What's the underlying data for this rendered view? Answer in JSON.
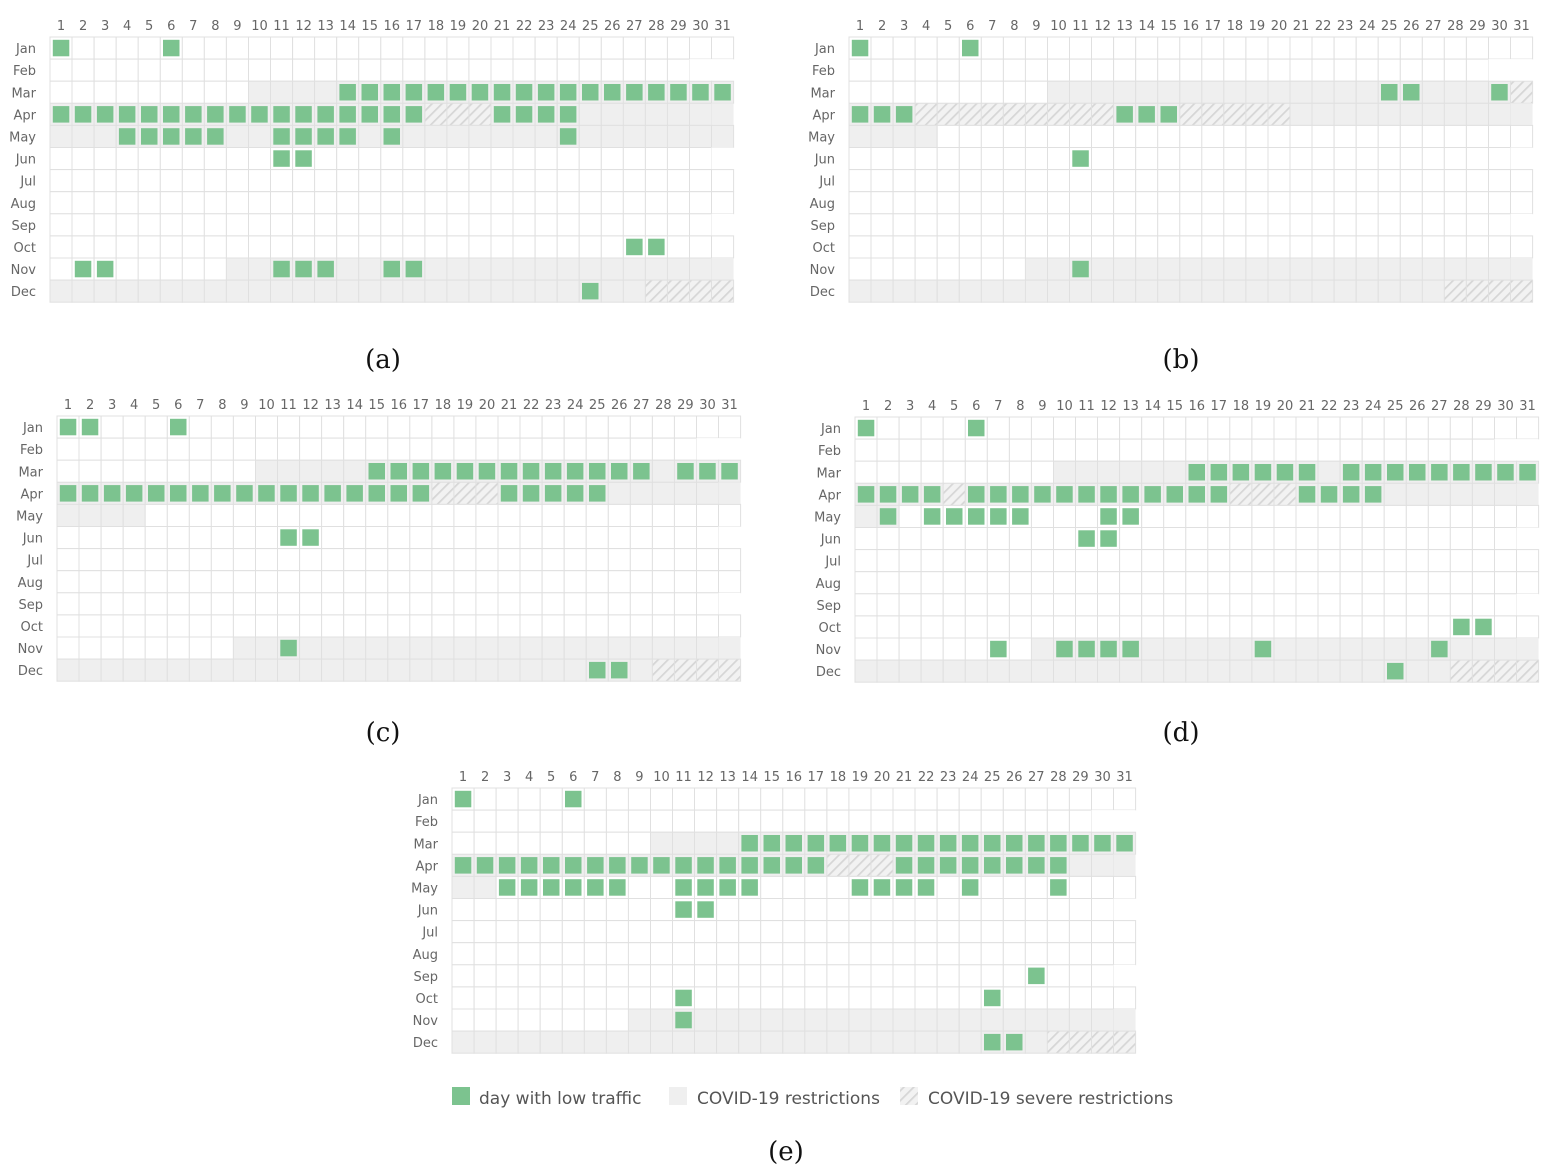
{
  "colors": {
    "low_traffic": "#7cc38f",
    "restriction": "#efefef",
    "severe_bg": "#f2f2f2",
    "severe_stripe": "#d6d6d6",
    "grid_line": "#e0e0e0",
    "cell_fill": "#ffffff"
  },
  "legend": {
    "low_traffic_label": "day with low traffic",
    "restrictions_label": "COVID-19 restrictions",
    "severe_label": "COVID-19 severe restrictions"
  },
  "chart_data": [
    {
      "type": "heatmap",
      "caption": "(a)",
      "days": [
        1,
        2,
        3,
        4,
        5,
        6,
        7,
        8,
        9,
        10,
        11,
        12,
        13,
        14,
        15,
        16,
        17,
        18,
        19,
        20,
        21,
        22,
        23,
        24,
        25,
        26,
        27,
        28,
        29,
        30,
        31
      ],
      "months": [
        "Jan",
        "Feb",
        "Mar",
        "Apr",
        "May",
        "Jun",
        "Jul",
        "Aug",
        "Sep",
        "Oct",
        "Nov",
        "Dec"
      ],
      "restriction_ranges": [
        {
          "month": "Mar",
          "from": 10,
          "to": 31
        },
        {
          "month": "Apr",
          "from": 1,
          "to": 30
        },
        {
          "month": "May",
          "from": 1,
          "to": 31
        },
        {
          "month": "Nov",
          "from": 9,
          "to": 30
        },
        {
          "month": "Dec",
          "from": 1,
          "to": 31
        }
      ],
      "severe_ranges": [
        {
          "month": "Apr",
          "from": 18,
          "to": 20
        },
        {
          "month": "Dec",
          "from": 28,
          "to": 31
        }
      ],
      "low_traffic_days": {
        "Jan": [
          1,
          6
        ],
        "Mar": [
          14,
          15,
          16,
          17,
          18,
          19,
          20,
          21,
          22,
          23,
          24,
          25,
          26,
          27,
          28,
          29,
          30,
          31
        ],
        "Apr": [
          1,
          2,
          3,
          4,
          5,
          6,
          7,
          8,
          9,
          10,
          11,
          12,
          13,
          14,
          15,
          16,
          17,
          21,
          22,
          23,
          24
        ],
        "May": [
          4,
          5,
          6,
          7,
          8,
          11,
          12,
          13,
          14,
          16,
          24
        ],
        "Jun": [
          11,
          12
        ],
        "Oct": [
          27,
          28
        ],
        "Nov": [
          2,
          3,
          11,
          12,
          13,
          16,
          17
        ],
        "Dec": [
          25
        ]
      }
    },
    {
      "type": "heatmap",
      "caption": "(b)",
      "days": [
        1,
        2,
        3,
        4,
        5,
        6,
        7,
        8,
        9,
        10,
        11,
        12,
        13,
        14,
        15,
        16,
        17,
        18,
        19,
        20,
        21,
        22,
        23,
        24,
        25,
        26,
        27,
        28,
        29,
        30,
        31
      ],
      "months": [
        "Jan",
        "Feb",
        "Mar",
        "Apr",
        "May",
        "Jun",
        "Jul",
        "Aug",
        "Sep",
        "Oct",
        "Nov",
        "Dec"
      ],
      "restriction_ranges": [
        {
          "month": "Mar",
          "from": 10,
          "to": 31
        },
        {
          "month": "Apr",
          "from": 1,
          "to": 30
        },
        {
          "month": "May",
          "from": 1,
          "to": 4
        },
        {
          "month": "Nov",
          "from": 9,
          "to": 30
        },
        {
          "month": "Dec",
          "from": 1,
          "to": 31
        }
      ],
      "severe_ranges": [
        {
          "month": "Mar",
          "from": 31,
          "to": 31
        },
        {
          "month": "Apr",
          "from": 4,
          "to": 12
        },
        {
          "month": "Apr",
          "from": 16,
          "to": 20
        },
        {
          "month": "Dec",
          "from": 28,
          "to": 31
        }
      ],
      "low_traffic_days": {
        "Jan": [
          1,
          6
        ],
        "Mar": [
          25,
          26,
          30
        ],
        "Apr": [
          1,
          2,
          3,
          13,
          14,
          15
        ],
        "Jun": [
          11
        ],
        "Nov": [
          11
        ]
      }
    },
    {
      "type": "heatmap",
      "caption": "(c)",
      "days": [
        1,
        2,
        3,
        4,
        5,
        6,
        7,
        8,
        9,
        10,
        11,
        12,
        13,
        14,
        15,
        16,
        17,
        18,
        19,
        20,
        21,
        22,
        23,
        24,
        25,
        26,
        27,
        28,
        29,
        30,
        31
      ],
      "months": [
        "Jan",
        "Feb",
        "Mar",
        "Apr",
        "May",
        "Jun",
        "Jul",
        "Aug",
        "Sep",
        "Oct",
        "Nov",
        "Dec"
      ],
      "restriction_ranges": [
        {
          "month": "Mar",
          "from": 10,
          "to": 31
        },
        {
          "month": "Apr",
          "from": 1,
          "to": 30
        },
        {
          "month": "May",
          "from": 1,
          "to": 4
        },
        {
          "month": "Nov",
          "from": 9,
          "to": 30
        },
        {
          "month": "Dec",
          "from": 1,
          "to": 31
        }
      ],
      "severe_ranges": [
        {
          "month": "Apr",
          "from": 18,
          "to": 20
        },
        {
          "month": "Dec",
          "from": 28,
          "to": 31
        }
      ],
      "low_traffic_days": {
        "Jan": [
          1,
          2,
          6
        ],
        "Mar": [
          15,
          16,
          17,
          18,
          19,
          20,
          21,
          22,
          23,
          24,
          25,
          26,
          27,
          29,
          30,
          31
        ],
        "Apr": [
          1,
          2,
          3,
          4,
          5,
          6,
          7,
          8,
          9,
          10,
          11,
          12,
          13,
          14,
          15,
          16,
          17,
          21,
          22,
          23,
          24,
          25
        ],
        "Jun": [
          11,
          12
        ],
        "Nov": [
          11
        ],
        "Dec": [
          25,
          26
        ]
      }
    },
    {
      "type": "heatmap",
      "caption": "(d)",
      "days": [
        1,
        2,
        3,
        4,
        5,
        6,
        7,
        8,
        9,
        10,
        11,
        12,
        13,
        14,
        15,
        16,
        17,
        18,
        19,
        20,
        21,
        22,
        23,
        24,
        25,
        26,
        27,
        28,
        29,
        30,
        31
      ],
      "months": [
        "Jan",
        "Feb",
        "Mar",
        "Apr",
        "May",
        "Jun",
        "Jul",
        "Aug",
        "Sep",
        "Oct",
        "Nov",
        "Dec"
      ],
      "restriction_ranges": [
        {
          "month": "Mar",
          "from": 10,
          "to": 31
        },
        {
          "month": "Apr",
          "from": 1,
          "to": 30
        },
        {
          "month": "May",
          "from": 1,
          "to": 2
        },
        {
          "month": "Nov",
          "from": 9,
          "to": 30
        },
        {
          "month": "Dec",
          "from": 1,
          "to": 31
        }
      ],
      "severe_ranges": [
        {
          "month": "Apr",
          "from": 5,
          "to": 5
        },
        {
          "month": "Apr",
          "from": 18,
          "to": 20
        },
        {
          "month": "Dec",
          "from": 28,
          "to": 31
        }
      ],
      "low_traffic_days": {
        "Jan": [
          1,
          6
        ],
        "Mar": [
          16,
          17,
          18,
          19,
          20,
          21,
          23,
          24,
          25,
          26,
          27,
          28,
          29,
          30,
          31
        ],
        "Apr": [
          1,
          2,
          3,
          4,
          6,
          7,
          8,
          9,
          10,
          11,
          12,
          13,
          14,
          15,
          16,
          17,
          21,
          22,
          23,
          24
        ],
        "May": [
          2,
          4,
          5,
          6,
          7,
          8,
          12,
          13
        ],
        "Jun": [
          11,
          12
        ],
        "Oct": [
          28,
          29
        ],
        "Nov": [
          7,
          10,
          11,
          12,
          13,
          19,
          27
        ],
        "Dec": [
          25
        ]
      }
    },
    {
      "type": "heatmap",
      "caption": "(e)",
      "days": [
        1,
        2,
        3,
        4,
        5,
        6,
        7,
        8,
        9,
        10,
        11,
        12,
        13,
        14,
        15,
        16,
        17,
        18,
        19,
        20,
        21,
        22,
        23,
        24,
        25,
        26,
        27,
        28,
        29,
        30,
        31
      ],
      "months": [
        "Jan",
        "Feb",
        "Mar",
        "Apr",
        "May",
        "Jun",
        "Jul",
        "Aug",
        "Sep",
        "Oct",
        "Nov",
        "Dec"
      ],
      "restriction_ranges": [
        {
          "month": "Mar",
          "from": 10,
          "to": 31
        },
        {
          "month": "Apr",
          "from": 1,
          "to": 30
        },
        {
          "month": "May",
          "from": 1,
          "to": 2
        },
        {
          "month": "Nov",
          "from": 9,
          "to": 30
        },
        {
          "month": "Dec",
          "from": 1,
          "to": 31
        }
      ],
      "severe_ranges": [
        {
          "month": "Apr",
          "from": 18,
          "to": 20
        },
        {
          "month": "Dec",
          "from": 28,
          "to": 31
        }
      ],
      "low_traffic_days": {
        "Jan": [
          1,
          6
        ],
        "Mar": [
          14,
          15,
          16,
          17,
          18,
          19,
          20,
          21,
          22,
          23,
          24,
          25,
          26,
          27,
          28,
          29,
          30,
          31
        ],
        "Apr": [
          1,
          2,
          3,
          4,
          5,
          6,
          7,
          8,
          9,
          10,
          11,
          12,
          13,
          14,
          15,
          16,
          17,
          21,
          22,
          23,
          24,
          25,
          26,
          27,
          28
        ],
        "May": [
          3,
          4,
          5,
          6,
          7,
          8,
          11,
          12,
          13,
          14,
          19,
          20,
          21,
          22,
          24,
          28
        ],
        "Jun": [
          11,
          12
        ],
        "Sep": [
          27
        ],
        "Oct": [
          11,
          25
        ],
        "Nov": [
          11
        ],
        "Dec": [
          25,
          26
        ]
      }
    }
  ]
}
